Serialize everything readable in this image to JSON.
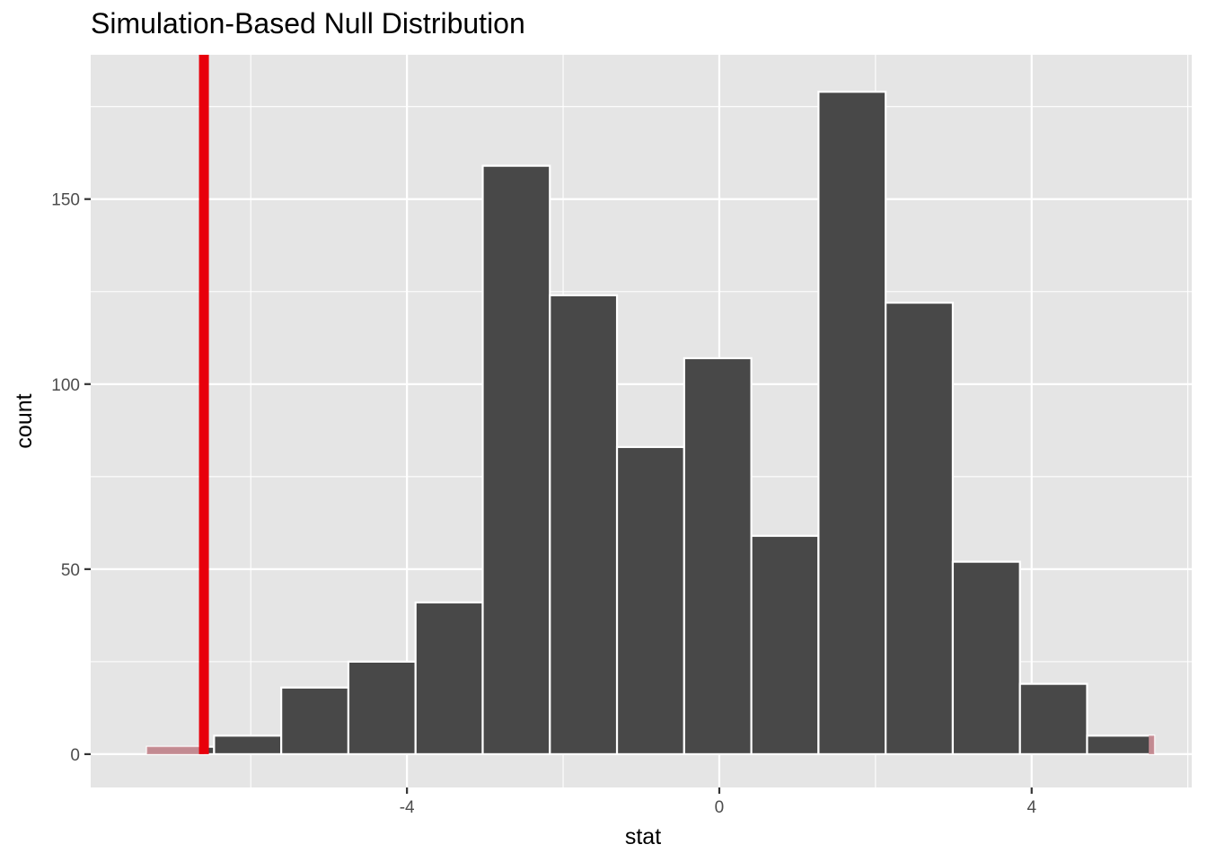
{
  "chart_data": {
    "type": "bar",
    "title": "Simulation-Based Null Distribution",
    "xlabel": "stat",
    "ylabel": "count",
    "xlim": [
      -8.05,
      6.05
    ],
    "ylim": [
      -9,
      189
    ],
    "x_ticks": [
      {
        "value": -4,
        "label": "-4"
      },
      {
        "value": 0,
        "label": "0"
      },
      {
        "value": 4,
        "label": "4"
      }
    ],
    "y_ticks": [
      {
        "value": 0,
        "label": "0"
      },
      {
        "value": 50,
        "label": "50"
      },
      {
        "value": 100,
        "label": "100"
      },
      {
        "value": 150,
        "label": "150"
      }
    ],
    "x_minor_gridlines": [
      -6,
      -2,
      2,
      6
    ],
    "y_minor_gridlines": [
      25,
      75,
      125,
      175
    ],
    "grid": true,
    "bin_width": 0.86,
    "bins": [
      {
        "center": -6.9,
        "count": 2
      },
      {
        "center": -6.04,
        "count": 5
      },
      {
        "center": -5.18,
        "count": 18
      },
      {
        "center": -4.32,
        "count": 25
      },
      {
        "center": -3.46,
        "count": 41
      },
      {
        "center": -2.6,
        "count": 159
      },
      {
        "center": -1.74,
        "count": 124
      },
      {
        "center": -0.88,
        "count": 83
      },
      {
        "center": -0.02,
        "count": 107
      },
      {
        "center": 0.84,
        "count": 59
      },
      {
        "center": 1.7,
        "count": 179
      },
      {
        "center": 2.56,
        "count": 122
      },
      {
        "center": 3.42,
        "count": 52
      },
      {
        "center": 4.28,
        "count": 19
      },
      {
        "center": 5.14,
        "count": 5
      }
    ],
    "observed_stat": -6.6,
    "shade_direction": "two-sided",
    "shaded_regions": [
      {
        "from": -8.05,
        "to": -6.6
      },
      {
        "from": 5.5,
        "to": 6.05
      }
    ],
    "colors": {
      "panel_background": "#e5e5e5",
      "gridline": "#ffffff",
      "bar_fill": "#484848",
      "bar_outline": "#ffffff",
      "observed_line": "#e8000b",
      "shade": "#c98e96"
    }
  }
}
